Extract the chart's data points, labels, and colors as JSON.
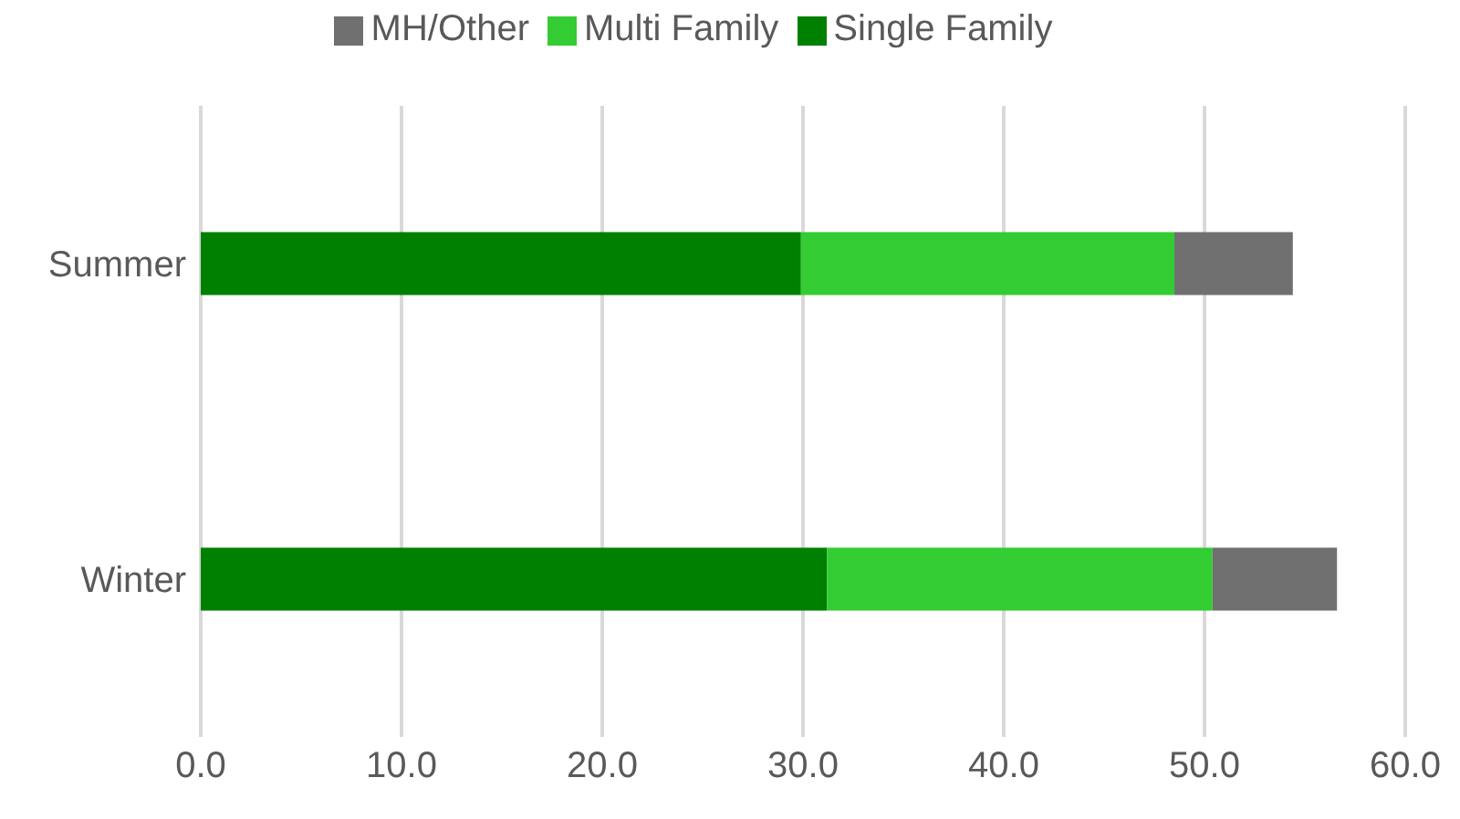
{
  "chart_data": {
    "type": "bar",
    "orientation": "horizontal",
    "stacked": true,
    "categories": [
      "Summer",
      "Winter"
    ],
    "series": [
      {
        "name": "Single Family",
        "color": "#008000",
        "values": [
          29.9,
          31.2
        ]
      },
      {
        "name": "Multi Family",
        "color": "#33cc33",
        "values": [
          18.6,
          19.2
        ]
      },
      {
        "name": "MH/Other",
        "color": "#707070",
        "values": [
          5.9,
          6.2
        ]
      }
    ],
    "xlim": [
      0,
      60
    ],
    "xticks": [
      {
        "value": 0,
        "label": "0.0"
      },
      {
        "value": 10,
        "label": "10.0"
      },
      {
        "value": 20,
        "label": "20.0"
      },
      {
        "value": 30,
        "label": "30.0"
      },
      {
        "value": 40,
        "label": "40.0"
      },
      {
        "value": 50,
        "label": "50.0"
      },
      {
        "value": 60,
        "label": "60.0"
      }
    ],
    "grid": "x",
    "legend": "top"
  }
}
